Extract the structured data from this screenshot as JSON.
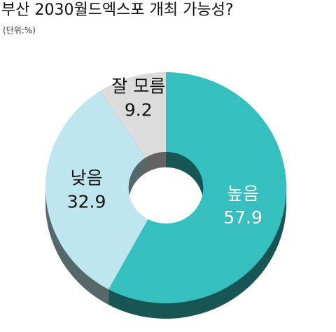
{
  "chart_data": {
    "type": "pie",
    "title": "부산 2030월드엑스포 개최 가능성?",
    "subtitle": "(단위:%)",
    "donut": true,
    "categories": [
      "높음",
      "낮음",
      "잘 모름"
    ],
    "values": [
      57.9,
      32.9,
      9.2
    ],
    "colors": [
      "#36bfbf",
      "#bfe6ee",
      "#dcdcdc"
    ]
  }
}
